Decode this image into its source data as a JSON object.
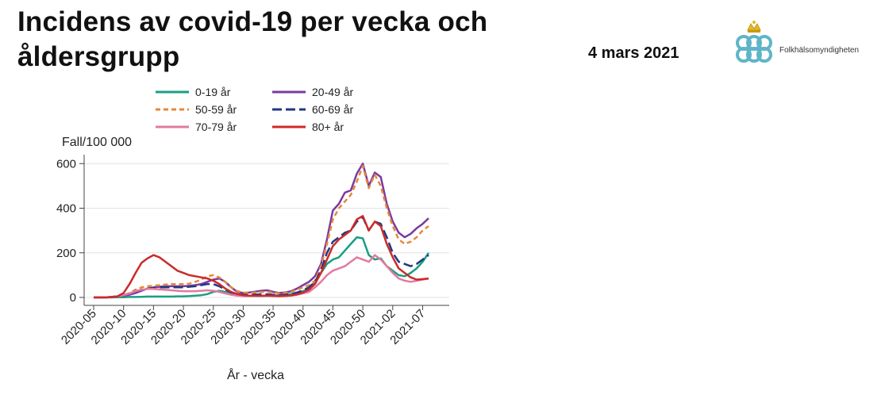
{
  "header": {
    "title": "Incidens av covid-19 per vecka och åldersgrupp",
    "date": "4 mars 2021",
    "logo_text": "Folkhälsomyndigheten"
  },
  "chart_data": {
    "type": "line",
    "xlabel": "År - vecka",
    "ylabel": "Fall/100 000",
    "ylim": [
      0,
      640
    ],
    "yticks": [
      0,
      200,
      400,
      600
    ],
    "xtick_labels": [
      "2020-05",
      "2020-10",
      "2020-15",
      "2020-20",
      "2020-25",
      "2020-30",
      "2020-35",
      "2020-40",
      "2020-45",
      "2020-50",
      "2021-02",
      "2021-07"
    ],
    "xtick_index": [
      0,
      5,
      10,
      15,
      20,
      25,
      30,
      35,
      40,
      45,
      50,
      55
    ],
    "grid": true,
    "legend_position": "top",
    "x": [
      "2020-05",
      "2020-06",
      "2020-07",
      "2020-08",
      "2020-09",
      "2020-10",
      "2020-11",
      "2020-12",
      "2020-13",
      "2020-14",
      "2020-15",
      "2020-16",
      "2020-17",
      "2020-18",
      "2020-19",
      "2020-20",
      "2020-21",
      "2020-22",
      "2020-23",
      "2020-24",
      "2020-25",
      "2020-26",
      "2020-27",
      "2020-28",
      "2020-29",
      "2020-30",
      "2020-31",
      "2020-32",
      "2020-33",
      "2020-34",
      "2020-35",
      "2020-36",
      "2020-37",
      "2020-38",
      "2020-39",
      "2020-40",
      "2020-41",
      "2020-42",
      "2020-43",
      "2020-44",
      "2020-45",
      "2020-46",
      "2020-47",
      "2020-48",
      "2020-49",
      "2020-50",
      "2020-51",
      "2020-52",
      "2020-53",
      "2021-01",
      "2021-02",
      "2021-03",
      "2021-04",
      "2021-05",
      "2021-06",
      "2021-07",
      "2021-08"
    ],
    "series": [
      {
        "name": "0-19 år",
        "color": "#1a9e84",
        "dash": "solid",
        "values": [
          0,
          0,
          0,
          0,
          1,
          1,
          2,
          2,
          3,
          4,
          4,
          4,
          4,
          4,
          5,
          5,
          6,
          8,
          10,
          15,
          25,
          30,
          25,
          15,
          10,
          8,
          7,
          6,
          6,
          7,
          8,
          10,
          12,
          15,
          20,
          28,
          40,
          70,
          110,
          150,
          170,
          180,
          210,
          240,
          270,
          265,
          190,
          170,
          175,
          140,
          120,
          100,
          95,
          110,
          130,
          160,
          200
        ]
      },
      {
        "name": "20-49 år",
        "color": "#7a3aa0",
        "dash": "solid",
        "values": [
          0,
          0,
          0,
          2,
          5,
          8,
          12,
          20,
          30,
          40,
          45,
          48,
          50,
          50,
          50,
          50,
          52,
          55,
          60,
          70,
          80,
          85,
          70,
          45,
          25,
          20,
          22,
          26,
          30,
          32,
          25,
          20,
          22,
          28,
          40,
          55,
          70,
          95,
          150,
          260,
          390,
          420,
          470,
          480,
          555,
          600,
          500,
          560,
          540,
          420,
          340,
          290,
          270,
          285,
          310,
          330,
          355
        ]
      },
      {
        "name": "50-59 år",
        "color": "#e8873a",
        "dash": "dash",
        "values": [
          0,
          0,
          0,
          2,
          5,
          10,
          20,
          35,
          45,
          50,
          52,
          55,
          58,
          60,
          60,
          60,
          62,
          70,
          80,
          95,
          100,
          90,
          70,
          45,
          28,
          22,
          20,
          22,
          24,
          25,
          22,
          18,
          20,
          25,
          35,
          45,
          55,
          75,
          140,
          240,
          350,
          400,
          430,
          460,
          520,
          590,
          490,
          550,
          500,
          400,
          320,
          260,
          240,
          250,
          270,
          300,
          320
        ]
      },
      {
        "name": "60-69 år",
        "color": "#1f3a80",
        "dash": "longdash",
        "values": [
          0,
          0,
          0,
          2,
          5,
          10,
          18,
          28,
          35,
          40,
          42,
          45,
          45,
          45,
          45,
          45,
          48,
          50,
          55,
          60,
          60,
          50,
          35,
          22,
          15,
          12,
          12,
          13,
          14,
          14,
          12,
          10,
          12,
          15,
          22,
          32,
          45,
          70,
          120,
          200,
          250,
          270,
          290,
          300,
          340,
          360,
          300,
          340,
          330,
          270,
          200,
          160,
          150,
          140,
          150,
          170,
          190
        ]
      },
      {
        "name": "70-79 år",
        "color": "#e27aa0",
        "dash": "solid",
        "values": [
          0,
          0,
          0,
          2,
          5,
          10,
          18,
          28,
          35,
          38,
          38,
          36,
          34,
          32,
          30,
          28,
          28,
          28,
          30,
          32,
          30,
          25,
          18,
          12,
          8,
          6,
          6,
          6,
          7,
          7,
          6,
          5,
          6,
          8,
          12,
          18,
          25,
          45,
          70,
          100,
          120,
          130,
          140,
          160,
          180,
          170,
          160,
          190,
          170,
          140,
          110,
          85,
          75,
          70,
          75,
          80,
          85
        ]
      },
      {
        "name": "80+ år",
        "color": "#cc2a2a",
        "dash": "solid",
        "values": [
          0,
          0,
          0,
          2,
          5,
          20,
          60,
          110,
          155,
          175,
          190,
          180,
          160,
          140,
          120,
          110,
          100,
          95,
          90,
          85,
          75,
          60,
          40,
          25,
          15,
          10,
          8,
          8,
          8,
          8,
          7,
          6,
          7,
          9,
          14,
          22,
          35,
          60,
          110,
          170,
          230,
          260,
          280,
          300,
          350,
          365,
          300,
          340,
          320,
          240,
          180,
          130,
          110,
          90,
          80,
          82,
          85
        ]
      }
    ]
  }
}
